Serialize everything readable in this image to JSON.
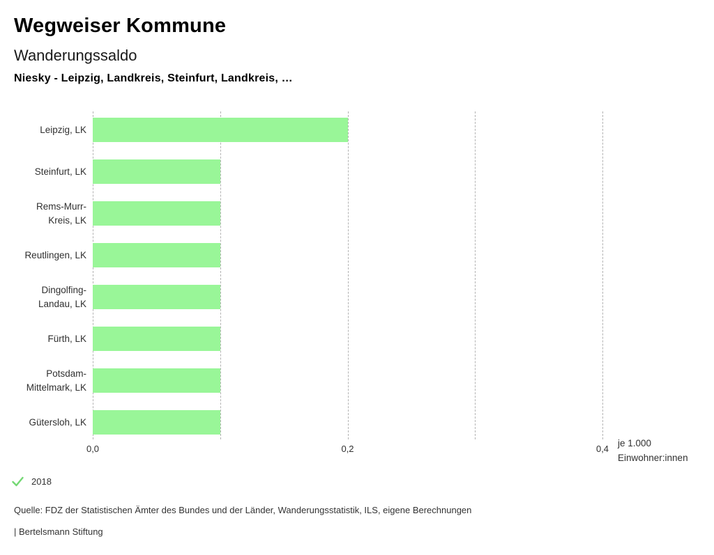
{
  "header": {
    "app_title": "Wegweiser Kommune",
    "chart_title": "Wanderungssaldo",
    "comparison": "Niesky - Leipzig, Landkreis, Steinfurt, Landkreis, …"
  },
  "chart_data": {
    "type": "bar",
    "orientation": "horizontal",
    "title": "Wanderungssaldo",
    "subtitle": "Niesky - Leipzig, Landkreis, Steinfurt, Landkreis, …",
    "categories": [
      "Leipzig, LK",
      "Steinfurt, LK",
      "Rems-Murr-Kreis, LK",
      "Reutlingen, LK",
      "Dingolfing-Landau, LK",
      "Fürth, LK",
      "Potsdam-Mittelmark, LK",
      "Gütersloh, LK"
    ],
    "category_label_lines": [
      [
        "Leipzig, LK"
      ],
      [
        "Steinfurt, LK"
      ],
      [
        "Rems-Murr-",
        "Kreis, LK"
      ],
      [
        "Reutlingen, LK"
      ],
      [
        "Dingolfing-",
        "Landau, LK"
      ],
      [
        "Fürth, LK"
      ],
      [
        "Potsdam-",
        "Mittelmark, LK"
      ],
      [
        "Gütersloh, LK"
      ]
    ],
    "series": [
      {
        "name": "2018",
        "values": [
          0.2,
          0.1,
          0.1,
          0.1,
          0.1,
          0.1,
          0.1,
          0.1
        ]
      }
    ],
    "xlabel": "je 1.000 Einwohner:innen",
    "unit_label_lines": [
      "je 1.000",
      "Einwohner:innen"
    ],
    "xlim": [
      0,
      0.4
    ],
    "x_ticks": [
      "0,0",
      "0,2",
      "0,4"
    ],
    "x_tick_values": [
      0,
      0.2,
      0.4
    ],
    "gridline_values": [
      0,
      0.1,
      0.2,
      0.3,
      0.4
    ],
    "grid": true,
    "legend_position": "bottom-left",
    "bar_color": "#99f698"
  },
  "legend": {
    "items": [
      {
        "label": "2018",
        "checked": true
      }
    ]
  },
  "footer": {
    "source": "Quelle: FDZ der Statistischen Ämter des Bundes und der Länder, Wanderungsstatistik, ILS, eigene Berechnungen",
    "attribution": "| Bertelsmann Stiftung"
  },
  "colors": {
    "bar": "#99f698",
    "gridline": "#b3b3b3",
    "check": "#74d874",
    "text": "#333333"
  }
}
